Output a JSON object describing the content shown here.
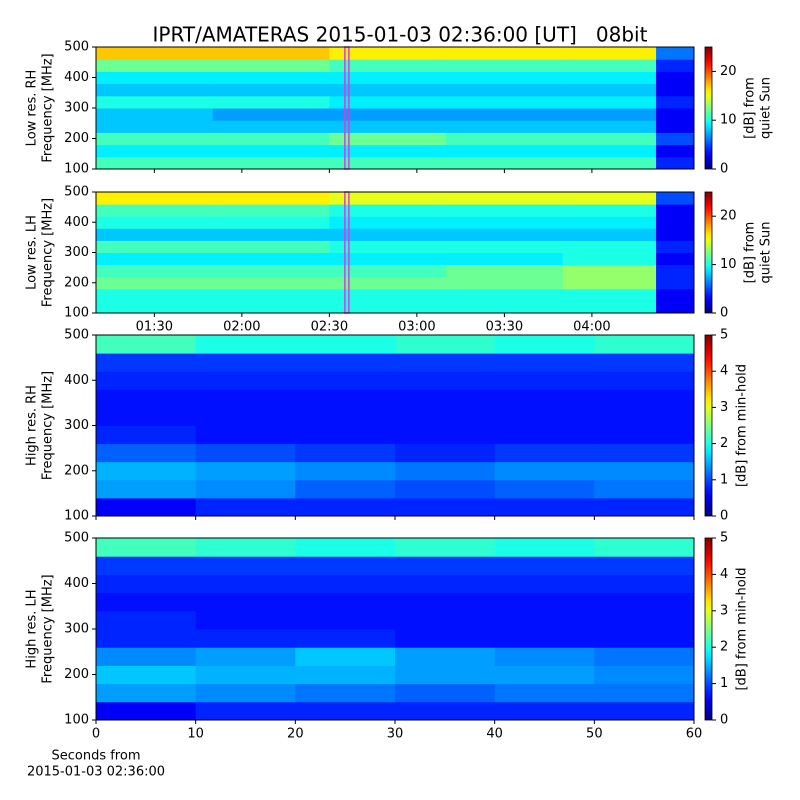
{
  "title": "IPRT/AMATERAS 2015-01-03 02:36:00 [UT]   08bit",
  "chart_data": [
    {
      "type": "heatmap",
      "ylabel": [
        "Low res. RH",
        "Frequency [MHz]"
      ],
      "colorbar_label": [
        "[dB] from",
        "quiet Sun"
      ],
      "clim": [
        0,
        25
      ],
      "cticks": [
        0,
        10,
        20
      ],
      "colormap": "jet",
      "xbins": [
        70,
        110,
        150,
        190,
        230,
        262,
        275
      ],
      "ybins": [
        100,
        140,
        180,
        220,
        260,
        300,
        340,
        380,
        420,
        460,
        500
      ],
      "z": [
        [
          11,
          11,
          11,
          11,
          11,
          4
        ],
        [
          9,
          9,
          9,
          9,
          9,
          3
        ],
        [
          11,
          11,
          12,
          11,
          11,
          5
        ],
        [
          8,
          8,
          8,
          8,
          8,
          3
        ],
        [
          8,
          7,
          7,
          7,
          7,
          3
        ],
        [
          10,
          10,
          9,
          9,
          9,
          4
        ],
        [
          8,
          8,
          8,
          8,
          8,
          3
        ],
        [
          9,
          9,
          9,
          9,
          9,
          3
        ],
        [
          12,
          12,
          11,
          11,
          11,
          4
        ],
        [
          17,
          17,
          16,
          16,
          16,
          6
        ]
      ],
      "xlim": [
        70,
        275
      ],
      "xticks": [
        90,
        120,
        150,
        180,
        210,
        240
      ],
      "xtick_labels": false,
      "ylim": [
        100,
        500
      ],
      "yticks": [
        100,
        200,
        300,
        400,
        500
      ],
      "marker_x": 156,
      "marker_color": "#d040e0"
    },
    {
      "type": "heatmap",
      "ylabel": [
        "Low res. LH",
        "Frequency [MHz]"
      ],
      "colorbar_label": [
        "[dB] from",
        "quiet Sun"
      ],
      "clim": [
        0,
        25
      ],
      "cticks": [
        0,
        10,
        20
      ],
      "colormap": "jet",
      "xbins": [
        70,
        110,
        150,
        190,
        230,
        262,
        275
      ],
      "ybins": [
        100,
        140,
        180,
        220,
        260,
        300,
        340,
        380,
        420,
        460,
        500
      ],
      "z": [
        [
          10,
          10,
          10,
          10,
          10,
          3
        ],
        [
          10,
          10,
          10,
          10,
          10,
          3
        ],
        [
          12,
          12,
          12,
          12,
          13,
          4
        ],
        [
          11,
          11,
          11,
          12,
          13,
          4
        ],
        [
          9,
          9,
          9,
          9,
          10,
          3
        ],
        [
          11,
          11,
          10,
          10,
          10,
          4
        ],
        [
          8,
          8,
          8,
          8,
          8,
          3
        ],
        [
          10,
          10,
          9,
          9,
          9,
          3
        ],
        [
          11,
          11,
          10,
          10,
          10,
          3
        ],
        [
          16,
          16,
          15,
          15,
          15,
          5
        ]
      ],
      "xlim": [
        70,
        275
      ],
      "xticks": [
        {
          "value": 90,
          "label": "01:30"
        },
        {
          "value": 120,
          "label": "02:00"
        },
        {
          "value": 150,
          "label": "02:30"
        },
        {
          "value": 180,
          "label": "03:00"
        },
        {
          "value": 210,
          "label": "03:30"
        },
        {
          "value": 240,
          "label": "04:00"
        }
      ],
      "xtick_labels": true,
      "ylim": [
        100,
        500
      ],
      "yticks": [
        100,
        200,
        300,
        400,
        500
      ],
      "marker_x": 156,
      "marker_color": "#d040e0"
    },
    {
      "type": "heatmap",
      "ylabel": [
        "High res. RH",
        "Frequency [MHz]"
      ],
      "colorbar_label": [
        "[dB] from min-hold"
      ],
      "clim": [
        0,
        5
      ],
      "cticks": [
        0,
        1,
        2,
        3,
        4,
        5
      ],
      "colormap": "jet",
      "xbins": [
        0,
        10,
        20,
        30,
        40,
        50,
        60
      ],
      "ybins": [
        100,
        140,
        180,
        220,
        260,
        300,
        340,
        380,
        420,
        460,
        500
      ],
      "z": [
        [
          0.6,
          0.8,
          0.8,
          0.8,
          0.8,
          0.8
        ],
        [
          1.4,
          1.3,
          1.1,
          1.0,
          1.1,
          1.2
        ],
        [
          1.5,
          1.4,
          1.3,
          1.2,
          1.3,
          1.3
        ],
        [
          1.1,
          1.0,
          0.9,
          0.8,
          0.9,
          0.9
        ],
        [
          0.8,
          0.7,
          0.7,
          0.7,
          0.7,
          0.7
        ],
        [
          0.7,
          0.7,
          0.7,
          0.7,
          0.7,
          0.7
        ],
        [
          0.7,
          0.7,
          0.7,
          0.7,
          0.7,
          0.7
        ],
        [
          0.8,
          0.8,
          0.8,
          0.8,
          0.8,
          0.8
        ],
        [
          0.9,
          0.9,
          0.9,
          0.9,
          0.9,
          0.9
        ],
        [
          2.2,
          2.0,
          2.0,
          2.1,
          2.0,
          2.1
        ]
      ],
      "xlim": [
        0,
        60
      ],
      "xticks": [
        0,
        10,
        20,
        30,
        40,
        50,
        60
      ],
      "xtick_labels": false,
      "ylim": [
        100,
        500
      ],
      "yticks": [
        100,
        200,
        300,
        400,
        500
      ]
    },
    {
      "type": "heatmap",
      "ylabel": [
        "High res. LH",
        "Frequency [MHz]"
      ],
      "colorbar_label": [
        "[dB] from min-hold"
      ],
      "clim": [
        0,
        5
      ],
      "cticks": [
        0,
        1,
        2,
        3,
        4,
        5
      ],
      "colormap": "jet",
      "xbins": [
        0,
        10,
        20,
        30,
        40,
        50,
        60
      ],
      "ybins": [
        100,
        140,
        180,
        220,
        260,
        300,
        340,
        380,
        420,
        460,
        500
      ],
      "z": [
        [
          0.6,
          0.8,
          0.8,
          0.8,
          0.8,
          0.8
        ],
        [
          1.4,
          1.3,
          1.2,
          1.1,
          1.2,
          1.2
        ],
        [
          1.6,
          1.5,
          1.5,
          1.4,
          1.4,
          1.3
        ],
        [
          1.3,
          1.4,
          1.6,
          1.4,
          1.3,
          1.2
        ],
        [
          0.8,
          0.8,
          0.8,
          0.7,
          0.7,
          0.7
        ],
        [
          0.8,
          0.7,
          0.7,
          0.7,
          0.7,
          0.7
        ],
        [
          0.7,
          0.7,
          0.7,
          0.7,
          0.7,
          0.7
        ],
        [
          0.8,
          0.8,
          0.8,
          0.8,
          0.8,
          0.8
        ],
        [
          0.9,
          0.9,
          0.9,
          0.9,
          0.9,
          0.9
        ],
        [
          2.2,
          2.1,
          2.0,
          2.1,
          2.0,
          2.1
        ]
      ],
      "xlim": [
        0,
        60
      ],
      "xticks": [
        0,
        10,
        20,
        30,
        40,
        50,
        60
      ],
      "xtick_labels": true,
      "xlabel": [
        "Seconds from",
        "2015-01-03 02:36:00"
      ],
      "ylim": [
        100,
        500
      ],
      "yticks": [
        100,
        200,
        300,
        400,
        500
      ]
    }
  ]
}
